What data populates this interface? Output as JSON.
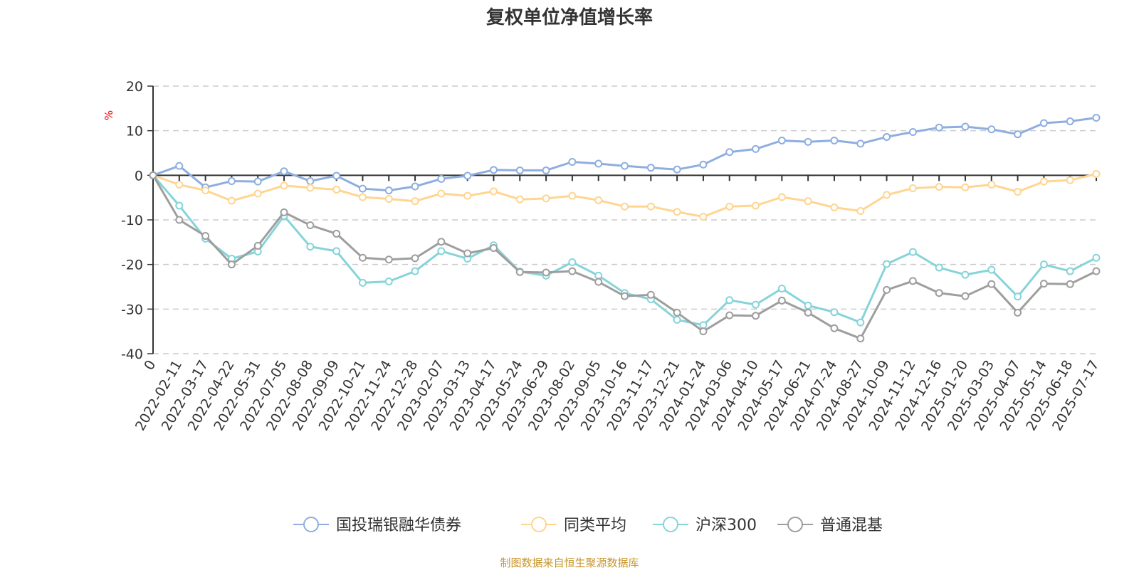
{
  "chart_data": {
    "type": "line",
    "title": "复权单位净值增长率",
    "ylabel": "%",
    "ylim": [
      -40,
      20
    ],
    "yticks": [
      20,
      10,
      0,
      -10,
      -20,
      -30,
      -40
    ],
    "grid": true,
    "legend_position": "bottom",
    "categories": [
      "0",
      "2022-02-11",
      "2022-03-17",
      "2022-04-22",
      "2022-05-31",
      "2022-07-05",
      "2022-08-08",
      "2022-09-09",
      "2022-10-21",
      "2022-11-24",
      "2022-12-28",
      "2023-02-07",
      "2023-03-13",
      "2023-04-17",
      "2023-05-24",
      "2023-06-29",
      "2023-08-02",
      "2023-09-05",
      "2023-10-16",
      "2023-11-17",
      "2023-12-21",
      "2024-01-24",
      "2024-03-06",
      "2024-04-10",
      "2024-05-17",
      "2024-06-21",
      "2024-07-24",
      "2024-08-27",
      "2024-10-09",
      "2024-11-12",
      "2024-12-16",
      "2025-01-20",
      "2025-03-03",
      "2025-04-07",
      "2025-05-14",
      "2025-06-18",
      "2025-07-17"
    ],
    "series": [
      {
        "name": "国投瑞银融华债券",
        "color": "#8eaee0",
        "values": [
          0,
          2.1,
          -2.7,
          -1.3,
          -1.4,
          0.9,
          -1.3,
          -0.1,
          -3.0,
          -3.4,
          -2.5,
          -0.8,
          -0.1,
          1.2,
          1.1,
          1.1,
          3.0,
          2.6,
          2.1,
          1.7,
          1.3,
          2.4,
          5.2,
          5.9,
          7.8,
          7.5,
          7.8,
          7.1,
          8.6,
          9.7,
          10.7,
          10.9,
          10.3,
          9.2,
          11.7,
          12.1,
          12.9
        ]
      },
      {
        "name": "同类平均",
        "color": "#ffd591",
        "values": [
          0,
          -2.1,
          -3.4,
          -5.7,
          -4.1,
          -2.3,
          -2.8,
          -3.2,
          -4.9,
          -5.3,
          -5.8,
          -4.1,
          -4.6,
          -3.6,
          -5.4,
          -5.2,
          -4.6,
          -5.6,
          -7.0,
          -7.0,
          -8.2,
          -9.3,
          -7.0,
          -6.8,
          -4.9,
          -5.8,
          -7.2,
          -8.0,
          -4.4,
          -2.9,
          -2.6,
          -2.7,
          -2.1,
          -3.7,
          -1.4,
          -1.1,
          0.3
        ]
      },
      {
        "name": "沪深300",
        "color": "#86d4d9",
        "values": [
          0,
          -6.8,
          -14.2,
          -18.7,
          -17.1,
          -9.1,
          -16.0,
          -17.0,
          -24.1,
          -23.8,
          -21.5,
          -17.0,
          -18.7,
          -15.7,
          -21.6,
          -22.5,
          -19.5,
          -22.5,
          -26.4,
          -27.8,
          -32.4,
          -33.6,
          -28.0,
          -29.0,
          -25.4,
          -29.2,
          -30.7,
          -33.0,
          -19.9,
          -17.2,
          -20.7,
          -22.3,
          -21.2,
          -27.2,
          -20.0,
          -21.5,
          -18.5
        ]
      },
      {
        "name": "普通混基",
        "color": "#9e9e9e",
        "values": [
          0,
          -10.0,
          -13.6,
          -20.0,
          -15.8,
          -8.3,
          -11.2,
          -13.1,
          -18.5,
          -18.9,
          -18.6,
          -14.9,
          -17.5,
          -16.3,
          -21.7,
          -21.8,
          -21.5,
          -23.9,
          -27.1,
          -26.8,
          -30.8,
          -35.0,
          -31.4,
          -31.5,
          -28.1,
          -30.8,
          -34.3,
          -36.6,
          -25.7,
          -23.7,
          -26.4,
          -27.1,
          -24.4,
          -30.8,
          -24.3,
          -24.4,
          -21.5
        ]
      }
    ]
  },
  "footer": "制图数据来自恒生聚源数据库"
}
